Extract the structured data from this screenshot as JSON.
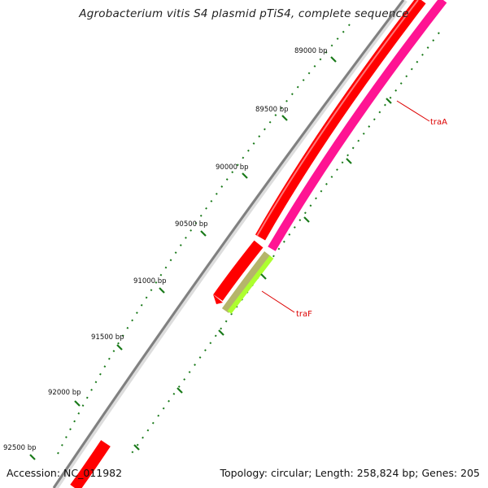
{
  "title": "Agrobacterium vitis S4 plasmid pTiS4, complete sequence",
  "footer": {
    "accession": "Accession: NC_011982",
    "summary": "Topology: circular; Length: 258,824 bp; Genes: 205"
  },
  "ticks": [
    {
      "label": "89000 bp"
    },
    {
      "label": "89500 bp"
    },
    {
      "label": "90000 bp"
    },
    {
      "label": "90500 bp"
    },
    {
      "label": "91000 bp"
    },
    {
      "label": "91500 bp"
    },
    {
      "label": "92000 bp"
    },
    {
      "label": "92500 bp"
    }
  ],
  "genes": [
    {
      "name": "traA",
      "color": "#ff1493"
    },
    {
      "name": "traF",
      "color": "#adff2f"
    }
  ],
  "colors": {
    "backbone": "#808080",
    "cds": "#ff0000",
    "tick": "#1a7a1a"
  }
}
